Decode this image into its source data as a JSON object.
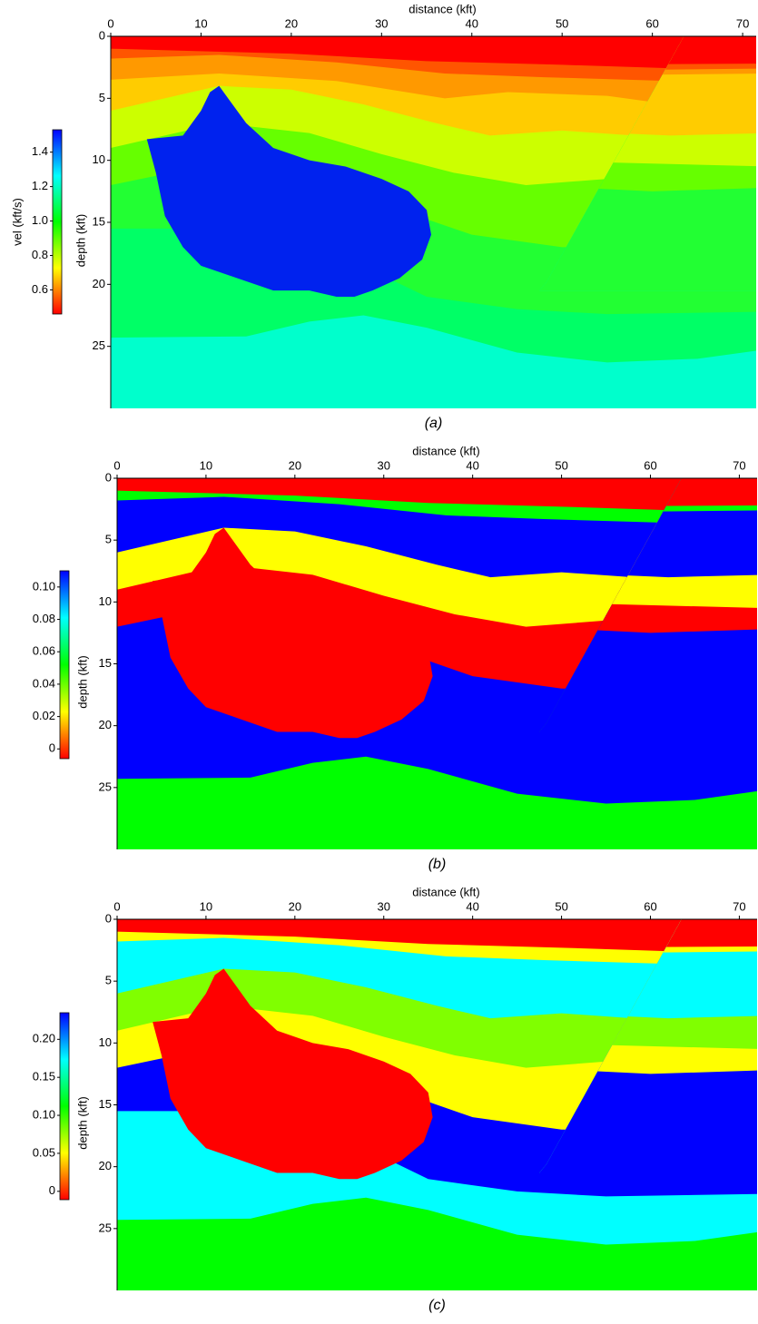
{
  "chart_data": [
    {
      "type": "image",
      "caption": "(a)",
      "xlabel": "distance (kft)",
      "ylabel": "depth (kft)",
      "xlim": [
        0,
        71.5
      ],
      "ylim": [
        0,
        30
      ],
      "xticks": [
        0,
        10,
        20,
        30,
        40,
        50,
        60,
        70
      ],
      "yticks": [
        0,
        5,
        10,
        15,
        20,
        25
      ],
      "colorbar": {
        "label": "vel (kft/s)",
        "lim": [
          0.46,
          1.53
        ],
        "ticks": [
          0.6,
          0.8,
          {
            "value": 1,
            "label": "1.0"
          },
          1.2,
          1.4
        ],
        "colormap": [
          "#ff0000",
          "#ffff00",
          "#00ff00",
          "#00ffff",
          "#0000ff"
        ]
      },
      "layer_colors": [
        "#ff0000",
        "#ff5500",
        "#ff9900",
        "#ffcc00",
        "#ccff00",
        "#66ff00",
        "#22ff33",
        "#00ff66",
        "#00ffcc"
      ],
      "salt_color": "#0022ee"
    },
    {
      "type": "image",
      "caption": "(b)",
      "xlabel": "distance (kft)",
      "ylabel": "depth (kft)",
      "xlim": [
        0,
        72
      ],
      "ylim": [
        0,
        30
      ],
      "xticks": [
        0,
        10,
        20,
        30,
        40,
        50,
        60,
        70
      ],
      "yticks": [
        0,
        5,
        10,
        15,
        20,
        25
      ],
      "colorbar": {
        "lim": [
          -0.006,
          0.11
        ],
        "ticks": [
          0,
          0.02,
          0.04,
          0.06,
          0.08,
          {
            "value": 0.1,
            "label": "0.10"
          }
        ],
        "colormap": [
          "#ff0000",
          "#ffff00",
          "#00ff00",
          "#00ffff",
          "#0000ff"
        ]
      },
      "layer_colors": [
        "#ff0000",
        "#00ff00",
        "#0000ff",
        "#0000ff",
        "#ffff00",
        "#ff0000",
        "#0000ff",
        "#0000ff",
        "#00ff00"
      ],
      "salt_color": "#ff0000"
    },
    {
      "type": "image",
      "caption": "(c)",
      "xlabel": "distance (kft)",
      "ylabel": "depth (kft)",
      "xlim": [
        0,
        72
      ],
      "ylim": [
        0,
        30
      ],
      "xticks": [
        0,
        10,
        20,
        30,
        40,
        50,
        60,
        70
      ],
      "yticks": [
        0,
        5,
        10,
        15,
        20,
        25
      ],
      "colorbar": {
        "lim": [
          -0.011,
          0.235
        ],
        "ticks": [
          0,
          0.05,
          {
            "value": 0.1,
            "label": "0.10"
          },
          0.15,
          {
            "value": 0.2,
            "label": "0.20"
          }
        ],
        "colormap": [
          "#ff0000",
          "#ffff00",
          "#00ff00",
          "#00ffff",
          "#0000ff"
        ]
      },
      "layer_colors": [
        "#ff0000",
        "#ffff00",
        "#00ffff",
        "#00ffff",
        "#80ff00",
        "#ffff00",
        "#0000ff",
        "#00ffff",
        "#00ff00"
      ],
      "salt_color": "#ff0000"
    }
  ]
}
